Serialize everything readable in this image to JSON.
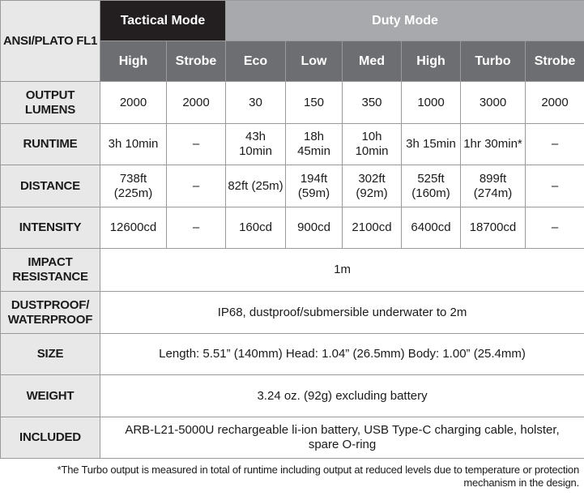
{
  "corner_label": "ANSI/PLATO FL1",
  "groups": {
    "tactical": "Tactical Mode",
    "duty": "Duty Mode"
  },
  "modes": [
    "High",
    "Strobe",
    "Eco",
    "Low",
    "Med",
    "High",
    "Turbo",
    "Strobe"
  ],
  "rows": {
    "output": {
      "label": "OUTPUT LUMENS",
      "values": [
        "2000",
        "2000",
        "30",
        "150",
        "350",
        "1000",
        "3000",
        "2000"
      ]
    },
    "runtime": {
      "label": "RUNTIME",
      "values": [
        "3h 10min",
        "–",
        "43h 10min",
        "18h 45min",
        "10h 10min",
        "3h 15min",
        "1hr 30min*",
        "–"
      ]
    },
    "distance": {
      "label": "DISTANCE",
      "values": [
        "738ft (225m)",
        "–",
        "82ft (25m)",
        "194ft (59m)",
        "302ft (92m)",
        "525ft (160m)",
        "899ft (274m)",
        "–"
      ]
    },
    "intensity": {
      "label": "INTENSITY",
      "values": [
        "12600cd",
        "–",
        "160cd",
        "900cd",
        "2100cd",
        "6400cd",
        "18700cd",
        "–"
      ]
    },
    "impact": {
      "label": "IMPACT RESISTANCE",
      "value": "1m"
    },
    "dustproof": {
      "label": "DUSTPROOF/ WATERPROOF",
      "value": "IP68, dustproof/submersible underwater to 2m"
    },
    "size": {
      "label": "SIZE",
      "value": "Length: 5.51” (140mm) Head: 1.04” (26.5mm) Body: 1.00” (25.4mm)"
    },
    "weight": {
      "label": "WEIGHT",
      "value": "3.24 oz. (92g) excluding battery"
    },
    "included": {
      "label": "INCLUDED",
      "value": "ARB-L21-5000U rechargeable li-ion battery, USB Type-C charging cable, holster, spare O-ring"
    }
  },
  "footnote": "*The Turbo output is measured in total of runtime including output at reduced levels due to temperature or protection mechanism in the design."
}
